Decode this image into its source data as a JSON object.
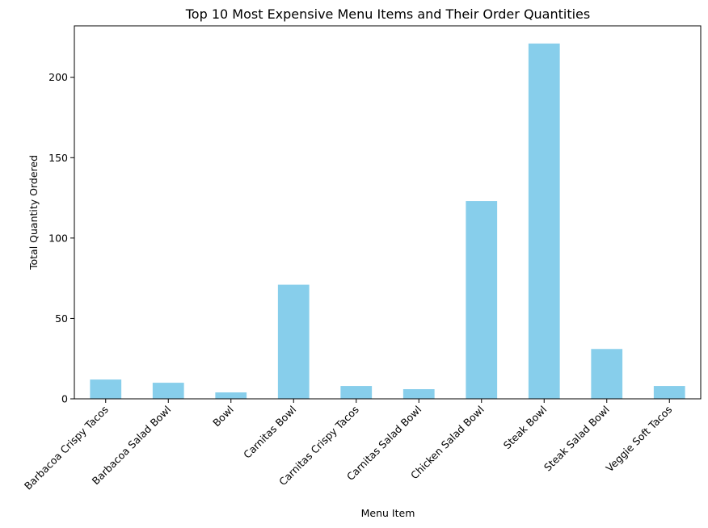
{
  "chart_data": {
    "type": "bar",
    "title": "Top 10 Most Expensive Menu Items and Their Order Quantities",
    "xlabel": "Menu Item",
    "ylabel": "Total Quantity Ordered",
    "categories": [
      "Barbacoa Crispy Tacos",
      "Barbacoa Salad Bowl",
      "Bowl",
      "Carnitas Bowl",
      "Carnitas Crispy Tacos",
      "Carnitas Salad Bowl",
      "Chicken Salad Bowl",
      "Steak Bowl",
      "Steak Salad Bowl",
      "Veggie Soft Tacos"
    ],
    "values": [
      12,
      10,
      4,
      71,
      8,
      6,
      123,
      221,
      31,
      8
    ],
    "ylim": [
      0,
      232
    ],
    "yticks": [
      0,
      50,
      100,
      150,
      200
    ],
    "grid": false,
    "legend": "none",
    "bar_color": "#87ceeb"
  }
}
